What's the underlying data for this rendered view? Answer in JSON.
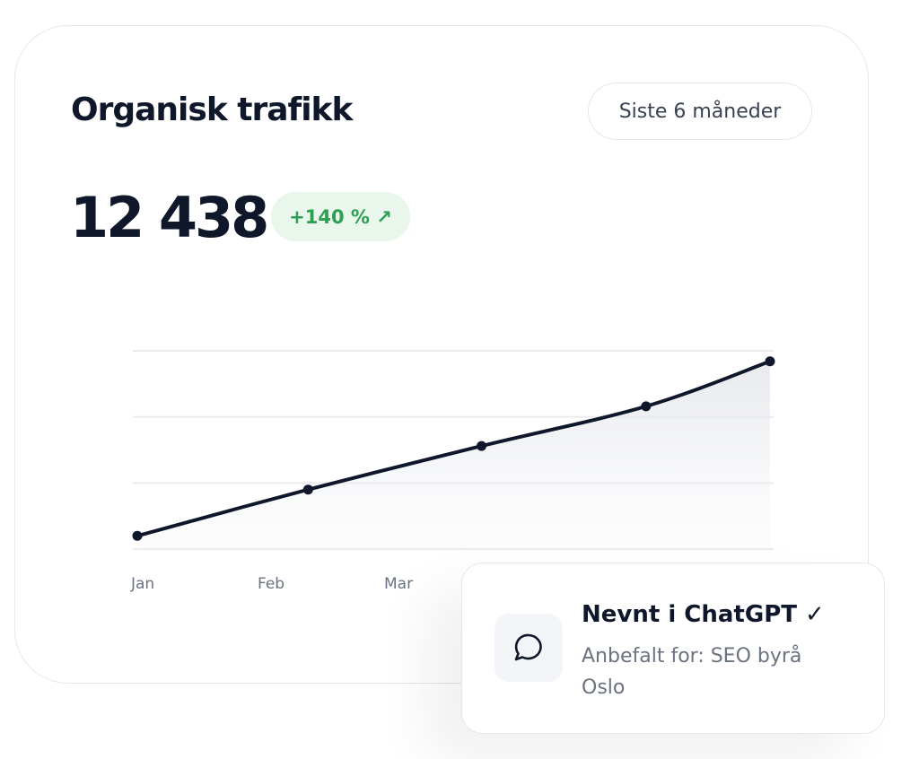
{
  "header": {
    "title": "Organisk trafikk",
    "period_button": "Siste 6 måneder"
  },
  "metric": {
    "value": "12 438",
    "change": "+140 % ↗"
  },
  "chart_data": {
    "type": "line",
    "x": [
      0,
      1.35,
      2.72,
      4.02,
      5
    ],
    "series": [
      {
        "color": "#0f172a",
        "values": [
          0.2,
          0.9,
          1.56,
          2.16,
          2.84
        ]
      }
    ],
    "xlim": [
      0,
      5
    ],
    "xticks": [
      {
        "value": 0,
        "label": "Jan"
      },
      {
        "value": 1,
        "label": "Feb"
      },
      {
        "value": 2,
        "label": "Mar"
      }
    ],
    "ylim": [
      0,
      3
    ],
    "yticks": [
      0,
      1,
      2,
      3
    ],
    "grid": true
  },
  "notification": {
    "title": "Nevnt i ChatGPT ✓",
    "text": "Anbefalt for: SEO byrå Oslo"
  }
}
